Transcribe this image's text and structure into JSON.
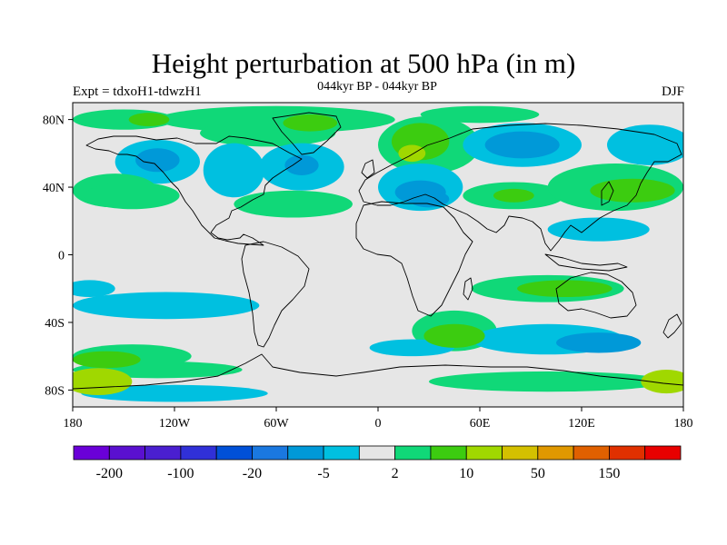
{
  "title": "Height perturbation at 500 hPa (in m)",
  "left_label": "Expt = tdxoH1-tdwzH1",
  "center_label": "044kyr BP - 044kyr BP",
  "right_label": "DJF",
  "map": {
    "projection": "cylindrical-equidistant",
    "lon_range": [
      -180,
      180
    ],
    "lat_range": [
      -90,
      90
    ],
    "x_ticks": [
      {
        "lon": -180,
        "label": "180"
      },
      {
        "lon": -120,
        "label": "120W"
      },
      {
        "lon": -60,
        "label": "60W"
      },
      {
        "lon": 0,
        "label": "0"
      },
      {
        "lon": 60,
        "label": "60E"
      },
      {
        "lon": 120,
        "label": "120E"
      },
      {
        "lon": 180,
        "label": "180"
      }
    ],
    "y_ticks": [
      {
        "lat": 80,
        "label": "80N"
      },
      {
        "lat": 40,
        "label": "40N"
      },
      {
        "lat": 0,
        "label": "0"
      },
      {
        "lat": -40,
        "label": "40S"
      },
      {
        "lat": -80,
        "label": "80S"
      }
    ],
    "background_color": "#e6e6e6",
    "coastline_color": "#000000"
  },
  "chart_data": {
    "type": "heatmap",
    "title": "Height perturbation at 500 hPa (in m)",
    "subtitle": "044kyr BP - 044kyr BP",
    "season": "DJF",
    "units": "m",
    "colorbar": {
      "colors": [
        "#6a00d8",
        "#5a10d0",
        "#4a1fd0",
        "#3030d8",
        "#0050d8",
        "#1a78e0",
        "#0099d8",
        "#00c0e0",
        "#e6e6e6",
        "#10d878",
        "#3ccc10",
        "#a0d800",
        "#d4c000",
        "#e09800",
        "#e06000",
        "#e03000",
        "#e80000"
      ],
      "labels": [
        {
          "boundary": 1,
          "text": "-200"
        },
        {
          "boundary": 3,
          "text": "-100"
        },
        {
          "boundary": 5,
          "text": "-20"
        },
        {
          "boundary": 7,
          "text": "-5"
        },
        {
          "boundary": 9,
          "text": "2"
        },
        {
          "boundary": 11,
          "text": "10"
        },
        {
          "boundary": 13,
          "text": "50"
        },
        {
          "boundary": 15,
          "text": "150"
        }
      ]
    },
    "regions": [
      {
        "lon": -150,
        "lat": 80,
        "rlon": 30,
        "rlat": 6,
        "level": 1
      },
      {
        "lon": -135,
        "lat": 80,
        "rlon": 12,
        "rlat": 4,
        "level": 2
      },
      {
        "lon": -60,
        "lat": 80,
        "rlon": 70,
        "rlat": 8,
        "level": 1
      },
      {
        "lon": -65,
        "lat": 72,
        "rlon": 40,
        "rlat": 8,
        "level": 1
      },
      {
        "lon": -40,
        "lat": 78,
        "rlon": 16,
        "rlat": 5,
        "level": 2
      },
      {
        "lon": 30,
        "lat": 65,
        "rlon": 30,
        "rlat": 17,
        "level": 1
      },
      {
        "lon": 25,
        "lat": 67,
        "rlon": 17,
        "rlat": 11,
        "level": 2
      },
      {
        "lon": 20,
        "lat": 60,
        "rlon": 8,
        "rlat": 5,
        "level": 3
      },
      {
        "lon": 60,
        "lat": 83,
        "rlon": 35,
        "rlat": 5,
        "level": 1
      },
      {
        "lon": -130,
        "lat": 55,
        "rlon": 25,
        "rlat": 13,
        "level": -1
      },
      {
        "lon": -130,
        "lat": 56,
        "rlon": 13,
        "rlat": 7,
        "level": -2
      },
      {
        "lon": -85,
        "lat": 50,
        "rlon": 18,
        "rlat": 16,
        "level": -1
      },
      {
        "lon": -45,
        "lat": 52,
        "rlon": 25,
        "rlat": 14,
        "level": -1
      },
      {
        "lon": -45,
        "lat": 53,
        "rlon": 10,
        "rlat": 6,
        "level": -2
      },
      {
        "lon": 85,
        "lat": 65,
        "rlon": 35,
        "rlat": 13,
        "level": -1
      },
      {
        "lon": 85,
        "lat": 65,
        "rlon": 22,
        "rlat": 8,
        "level": -2
      },
      {
        "lon": 160,
        "lat": 65,
        "rlon": 25,
        "rlat": 12,
        "level": -1
      },
      {
        "lon": -155,
        "lat": 38,
        "rlon": 25,
        "rlat": 10,
        "level": 1
      },
      {
        "lon": -145,
        "lat": 35,
        "rlon": 28,
        "rlat": 8,
        "level": 1
      },
      {
        "lon": -50,
        "lat": 30,
        "rlon": 35,
        "rlat": 8,
        "level": 1
      },
      {
        "lon": 25,
        "lat": 40,
        "rlon": 25,
        "rlat": 14,
        "level": -1
      },
      {
        "lon": 25,
        "lat": 37,
        "rlon": 15,
        "rlat": 7,
        "level": -2
      },
      {
        "lon": 30,
        "lat": 33,
        "rlon": 12,
        "rlat": 5,
        "level": -2
      },
      {
        "lon": 80,
        "lat": 35,
        "rlon": 30,
        "rlat": 8,
        "level": 1
      },
      {
        "lon": 80,
        "lat": 35,
        "rlon": 12,
        "rlat": 4,
        "level": 2
      },
      {
        "lon": 140,
        "lat": 40,
        "rlon": 40,
        "rlat": 14,
        "level": 1
      },
      {
        "lon": 150,
        "lat": 38,
        "rlon": 25,
        "rlat": 7,
        "level": 2
      },
      {
        "lon": 130,
        "lat": 15,
        "rlon": 30,
        "rlat": 7,
        "level": -1
      },
      {
        "lon": -170,
        "lat": -20,
        "rlon": 15,
        "rlat": 5,
        "level": -1
      },
      {
        "lon": -125,
        "lat": -30,
        "rlon": 55,
        "rlat": 8,
        "level": -1
      },
      {
        "lon": 100,
        "lat": -20,
        "rlon": 45,
        "rlat": 8,
        "level": 1
      },
      {
        "lon": 110,
        "lat": -20,
        "rlon": 28,
        "rlat": 5,
        "level": 2
      },
      {
        "lon": 45,
        "lat": -45,
        "rlon": 25,
        "rlat": 12,
        "level": 1
      },
      {
        "lon": 45,
        "lat": -48,
        "rlon": 18,
        "rlat": 7,
        "level": 2
      },
      {
        "lon": -145,
        "lat": -60,
        "rlon": 35,
        "rlat": 7,
        "level": 1
      },
      {
        "lon": -160,
        "lat": -62,
        "rlon": 20,
        "rlat": 5,
        "level": 2
      },
      {
        "lon": 20,
        "lat": -55,
        "rlon": 25,
        "rlat": 5,
        "level": -1
      },
      {
        "lon": 100,
        "lat": -50,
        "rlon": 45,
        "rlat": 9,
        "level": -1
      },
      {
        "lon": 130,
        "lat": -52,
        "rlon": 25,
        "rlat": 6,
        "level": -2
      },
      {
        "lon": -130,
        "lat": -68,
        "rlon": 50,
        "rlat": 5,
        "level": 1
      },
      {
        "lon": -165,
        "lat": -75,
        "rlon": 20,
        "rlat": 8,
        "level": 3
      },
      {
        "lon": 170,
        "lat": -75,
        "rlon": 15,
        "rlat": 7,
        "level": 3
      },
      {
        "lon": 100,
        "lat": -75,
        "rlon": 70,
        "rlat": 6,
        "level": 1
      },
      {
        "lon": -120,
        "lat": -82,
        "rlon": 55,
        "rlat": 5,
        "level": -1
      }
    ]
  }
}
